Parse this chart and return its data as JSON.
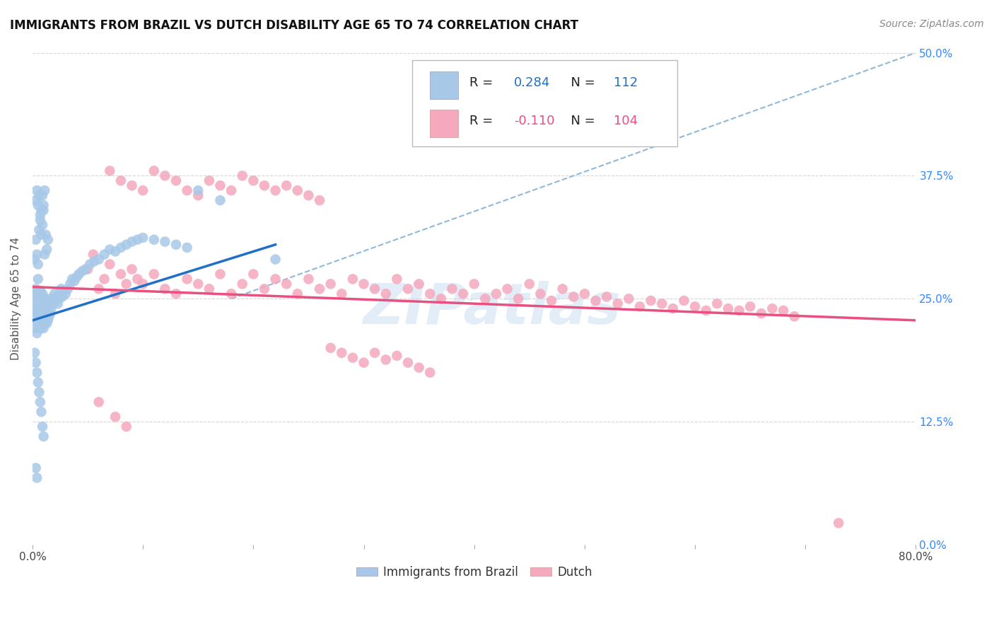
{
  "title": "IMMIGRANTS FROM BRAZIL VS DUTCH DISABILITY AGE 65 TO 74 CORRELATION CHART",
  "source": "Source: ZipAtlas.com",
  "ylabel": "Disability Age 65 to 74",
  "xlim": [
    0.0,
    0.8
  ],
  "ylim": [
    0.0,
    0.5
  ],
  "watermark": "ZIPatlas",
  "legend_brazil_R": "0.284",
  "legend_brazil_N": "112",
  "legend_dutch_R": "-0.110",
  "legend_dutch_N": "104",
  "brazil_color": "#a8c8e8",
  "dutch_color": "#f5a8be",
  "brazil_line_color": "#2070c8",
  "dutch_line_color": "#e85080",
  "dashed_line_color": "#90b8d8",
  "grid_color": "#cccccc",
  "brazil_line_x0": 0.0,
  "brazil_line_y0": 0.228,
  "brazil_line_x1": 0.22,
  "brazil_line_y1": 0.305,
  "dutch_line_x0": 0.0,
  "dutch_line_y0": 0.262,
  "dutch_line_x1": 0.8,
  "dutch_line_y1": 0.228,
  "dash_line_x0": 0.18,
  "dash_line_y0": 0.25,
  "dash_line_x1": 0.8,
  "dash_line_y1": 0.5,
  "brazil_scatter_x": [
    0.001,
    0.002,
    0.002,
    0.003,
    0.003,
    0.003,
    0.004,
    0.004,
    0.004,
    0.005,
    0.005,
    0.005,
    0.005,
    0.006,
    0.006,
    0.006,
    0.007,
    0.007,
    0.007,
    0.008,
    0.008,
    0.008,
    0.009,
    0.009,
    0.009,
    0.01,
    0.01,
    0.01,
    0.011,
    0.011,
    0.012,
    0.012,
    0.013,
    0.013,
    0.014,
    0.014,
    0.015,
    0.015,
    0.016,
    0.016,
    0.017,
    0.018,
    0.019,
    0.02,
    0.021,
    0.022,
    0.023,
    0.024,
    0.025,
    0.026,
    0.027,
    0.028,
    0.03,
    0.032,
    0.034,
    0.036,
    0.038,
    0.04,
    0.042,
    0.045,
    0.048,
    0.052,
    0.056,
    0.06,
    0.065,
    0.07,
    0.075,
    0.08,
    0.085,
    0.09,
    0.095,
    0.1,
    0.11,
    0.12,
    0.13,
    0.14,
    0.002,
    0.003,
    0.004,
    0.005,
    0.006,
    0.007,
    0.008,
    0.009,
    0.01,
    0.011,
    0.012,
    0.013,
    0.014,
    0.003,
    0.004,
    0.005,
    0.006,
    0.007,
    0.008,
    0.009,
    0.01,
    0.011,
    0.15,
    0.17,
    0.002,
    0.003,
    0.004,
    0.005,
    0.006,
    0.007,
    0.008,
    0.009,
    0.01,
    0.22,
    0.003,
    0.004
  ],
  "brazil_scatter_y": [
    0.23,
    0.24,
    0.255,
    0.22,
    0.245,
    0.26,
    0.215,
    0.235,
    0.25,
    0.225,
    0.24,
    0.255,
    0.27,
    0.22,
    0.235,
    0.25,
    0.225,
    0.24,
    0.258,
    0.22,
    0.235,
    0.25,
    0.225,
    0.24,
    0.255,
    0.22,
    0.235,
    0.252,
    0.225,
    0.24,
    0.23,
    0.248,
    0.225,
    0.242,
    0.228,
    0.244,
    0.232,
    0.248,
    0.235,
    0.25,
    0.24,
    0.245,
    0.25,
    0.255,
    0.248,
    0.252,
    0.245,
    0.25,
    0.255,
    0.26,
    0.252,
    0.258,
    0.255,
    0.26,
    0.265,
    0.27,
    0.268,
    0.272,
    0.275,
    0.278,
    0.28,
    0.285,
    0.288,
    0.29,
    0.295,
    0.3,
    0.298,
    0.302,
    0.305,
    0.308,
    0.31,
    0.312,
    0.31,
    0.308,
    0.305,
    0.302,
    0.29,
    0.31,
    0.295,
    0.285,
    0.32,
    0.33,
    0.315,
    0.325,
    0.34,
    0.295,
    0.315,
    0.3,
    0.31,
    0.35,
    0.36,
    0.345,
    0.355,
    0.335,
    0.34,
    0.355,
    0.345,
    0.36,
    0.36,
    0.35,
    0.195,
    0.185,
    0.175,
    0.165,
    0.155,
    0.145,
    0.135,
    0.12,
    0.11,
    0.29,
    0.078,
    0.068
  ],
  "dutch_scatter_x": [
    0.05,
    0.055,
    0.06,
    0.065,
    0.07,
    0.075,
    0.08,
    0.085,
    0.09,
    0.095,
    0.1,
    0.11,
    0.12,
    0.13,
    0.14,
    0.15,
    0.16,
    0.17,
    0.18,
    0.19,
    0.2,
    0.21,
    0.22,
    0.23,
    0.24,
    0.25,
    0.26,
    0.27,
    0.28,
    0.29,
    0.3,
    0.31,
    0.32,
    0.33,
    0.34,
    0.35,
    0.36,
    0.37,
    0.38,
    0.39,
    0.4,
    0.41,
    0.42,
    0.43,
    0.44,
    0.45,
    0.46,
    0.47,
    0.48,
    0.49,
    0.5,
    0.51,
    0.52,
    0.53,
    0.54,
    0.55,
    0.56,
    0.57,
    0.58,
    0.59,
    0.6,
    0.61,
    0.62,
    0.63,
    0.64,
    0.65,
    0.66,
    0.67,
    0.68,
    0.69,
    0.07,
    0.08,
    0.09,
    0.1,
    0.11,
    0.12,
    0.13,
    0.14,
    0.15,
    0.16,
    0.17,
    0.18,
    0.19,
    0.2,
    0.21,
    0.22,
    0.23,
    0.24,
    0.25,
    0.26,
    0.27,
    0.28,
    0.29,
    0.3,
    0.31,
    0.32,
    0.33,
    0.34,
    0.35,
    0.36,
    0.73,
    0.06,
    0.075,
    0.085
  ],
  "dutch_scatter_y": [
    0.28,
    0.295,
    0.26,
    0.27,
    0.285,
    0.255,
    0.275,
    0.265,
    0.28,
    0.27,
    0.265,
    0.275,
    0.26,
    0.255,
    0.27,
    0.265,
    0.26,
    0.275,
    0.255,
    0.265,
    0.275,
    0.26,
    0.27,
    0.265,
    0.255,
    0.27,
    0.26,
    0.265,
    0.255,
    0.27,
    0.265,
    0.26,
    0.255,
    0.27,
    0.26,
    0.265,
    0.255,
    0.25,
    0.26,
    0.255,
    0.265,
    0.25,
    0.255,
    0.26,
    0.25,
    0.265,
    0.255,
    0.248,
    0.26,
    0.252,
    0.255,
    0.248,
    0.252,
    0.245,
    0.25,
    0.242,
    0.248,
    0.245,
    0.24,
    0.248,
    0.242,
    0.238,
    0.245,
    0.24,
    0.238,
    0.242,
    0.235,
    0.24,
    0.238,
    0.232,
    0.38,
    0.37,
    0.365,
    0.36,
    0.38,
    0.375,
    0.37,
    0.36,
    0.355,
    0.37,
    0.365,
    0.36,
    0.375,
    0.37,
    0.365,
    0.36,
    0.365,
    0.36,
    0.355,
    0.35,
    0.2,
    0.195,
    0.19,
    0.185,
    0.195,
    0.188,
    0.192,
    0.185,
    0.18,
    0.175,
    0.022,
    0.145,
    0.13,
    0.12
  ]
}
